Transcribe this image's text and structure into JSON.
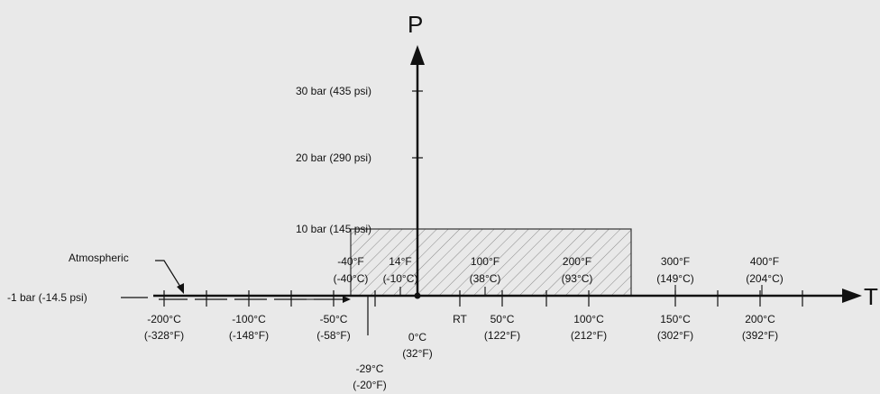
{
  "axes": {
    "p_label": "P",
    "t_label": "T"
  },
  "pressure_labels": [
    {
      "text": "30 bar (435 psi)"
    },
    {
      "text": "20 bar (290 psi)"
    },
    {
      "text": "10 bar (145 psi)"
    }
  ],
  "atmospheric_label": "Atmospheric",
  "vacuum_label": "-1 bar (-14.5 psi)",
  "above_labels": [
    {
      "l1": "-40°F",
      "l2": "(-40°C)"
    },
    {
      "l1": "14°F",
      "l2": "(-10°C)"
    },
    {
      "l1": "100°F",
      "l2": "(38°C)"
    },
    {
      "l1": "200°F",
      "l2": "(93°C)"
    },
    {
      "l1": "300°F",
      "l2": "(149°C)"
    },
    {
      "l1": "400°F",
      "l2": "(204°C)"
    }
  ],
  "below_labels": [
    {
      "l1": "-200°C",
      "l2": "(-328°F)"
    },
    {
      "l1": "-100°C",
      "l2": "(-148°F)"
    },
    {
      "l1": "-50°C",
      "l2": "(-58°F)"
    },
    {
      "l1": "0°C",
      "l2": "(32°F)"
    },
    {
      "l1": "RT",
      "l2": ""
    },
    {
      "l1": "50°C",
      "l2": "(122°F)"
    },
    {
      "l1": "100°C",
      "l2": "(212°F)"
    },
    {
      "l1": "150°C",
      "l2": "(302°F)"
    },
    {
      "l1": "200°C",
      "l2": "(392°F)"
    }
  ],
  "low_limit_label": {
    "l1": "-29°C",
    "l2": "(-20°F)"
  },
  "operating_range": {
    "t_min_f": -40,
    "t_max_f": 300,
    "p_min_bar": 0,
    "p_max_bar": 10
  },
  "colors": {
    "background": "#e9e9e9",
    "ink": "#111111",
    "hatch": "#8a8a8a"
  }
}
